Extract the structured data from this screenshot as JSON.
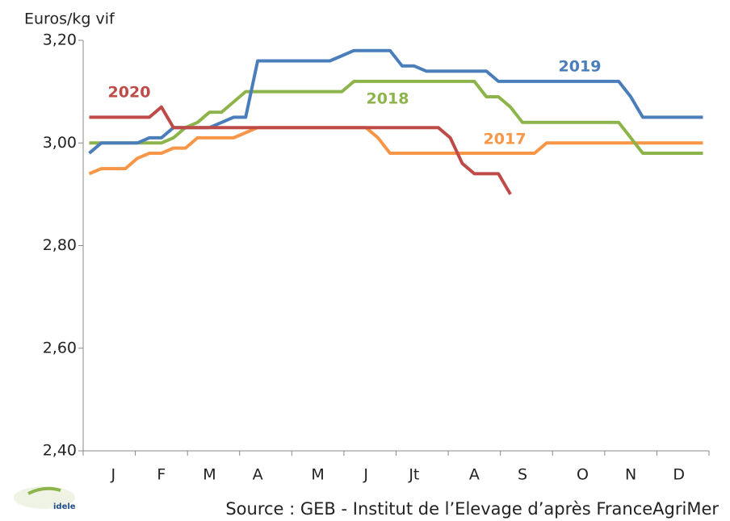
{
  "chart_data": {
    "type": "line",
    "y_label": "Euros/kg vif",
    "source": "Source : GEB - Institut de l’Elevage d’après FranceAgriMer",
    "logo": "idele",
    "categories": [
      null,
      null,
      "J",
      null,
      null,
      null,
      "F",
      null,
      null,
      null,
      "M",
      null,
      null,
      null,
      "A",
      null,
      null,
      null,
      null,
      "M",
      null,
      null,
      null,
      "J",
      null,
      null,
      null,
      "Jt",
      null,
      null,
      null,
      null,
      "A",
      null,
      null,
      null,
      "S",
      null,
      null,
      null,
      null,
      "O",
      null,
      null,
      null,
      "N",
      null,
      null,
      null,
      "D",
      null,
      null
    ],
    "series": [
      {
        "name": "2017",
        "color": "#f79646",
        "values": [
          2.94,
          2.95,
          2.95,
          2.95,
          2.97,
          2.98,
          2.98,
          2.99,
          2.99,
          3.01,
          3.01,
          3.01,
          3.01,
          3.02,
          3.03,
          3.03,
          3.03,
          3.03,
          3.03,
          3.03,
          3.03,
          3.03,
          3.03,
          3.03,
          3.01,
          2.98,
          2.98,
          2.98,
          2.98,
          2.98,
          2.98,
          2.98,
          2.98,
          2.98,
          2.98,
          2.98,
          2.98,
          2.98,
          3.0,
          3.0,
          3.0,
          3.0,
          3.0,
          3.0,
          3.0,
          3.0,
          3.0,
          3.0,
          3.0,
          3.0,
          3.0,
          3.0
        ]
      },
      {
        "name": "2018",
        "color": "#8db44a",
        "values": [
          3.0,
          3.0,
          3.0,
          3.0,
          3.0,
          3.0,
          3.0,
          3.01,
          3.03,
          3.04,
          3.06,
          3.06,
          3.08,
          3.1,
          3.1,
          3.1,
          3.1,
          3.1,
          3.1,
          3.1,
          3.1,
          3.1,
          3.12,
          3.12,
          3.12,
          3.12,
          3.12,
          3.12,
          3.12,
          3.12,
          3.12,
          3.12,
          3.12,
          3.09,
          3.09,
          3.07,
          3.04,
          3.04,
          3.04,
          3.04,
          3.04,
          3.04,
          3.04,
          3.04,
          3.04,
          3.01,
          2.98,
          2.98,
          2.98,
          2.98,
          2.98,
          2.98
        ]
      },
      {
        "name": "2019",
        "color": "#4a7ebb",
        "values": [
          2.98,
          3.0,
          3.0,
          3.0,
          3.0,
          3.01,
          3.01,
          3.03,
          3.03,
          3.03,
          3.03,
          3.04,
          3.05,
          3.05,
          3.16,
          3.16,
          3.16,
          3.16,
          3.16,
          3.16,
          3.16,
          3.17,
          3.18,
          3.18,
          3.18,
          3.18,
          3.15,
          3.15,
          3.14,
          3.14,
          3.14,
          3.14,
          3.14,
          3.14,
          3.12,
          3.12,
          3.12,
          3.12,
          3.12,
          3.12,
          3.12,
          3.12,
          3.12,
          3.12,
          3.12,
          3.09,
          3.05,
          3.05,
          3.05,
          3.05,
          3.05,
          3.05
        ]
      },
      {
        "name": "2020",
        "color": "#be4b48",
        "values": [
          3.05,
          3.05,
          3.05,
          3.05,
          3.05,
          3.05,
          3.07,
          3.03,
          3.03,
          3.03,
          3.03,
          3.03,
          3.03,
          3.03,
          3.03,
          3.03,
          3.03,
          3.03,
          3.03,
          3.03,
          3.03,
          3.03,
          3.03,
          3.03,
          3.03,
          3.03,
          3.03,
          3.03,
          3.03,
          3.03,
          3.01,
          2.96,
          2.94,
          2.94,
          2.94,
          2.9,
          null,
          null,
          null,
          null,
          null,
          null,
          null,
          null,
          null,
          null,
          null,
          null,
          null,
          null,
          null,
          null
        ]
      }
    ],
    "ylim": [
      2.4,
      3.2
    ],
    "yticks": [
      {
        "value": 2.4,
        "label": "2,40"
      },
      {
        "value": 2.6,
        "label": "2,60"
      },
      {
        "value": 2.8,
        "label": "2,80"
      },
      {
        "value": 3.0,
        "label": "3,00"
      },
      {
        "value": 3.2,
        "label": "3,20"
      }
    ],
    "grid": false
  }
}
